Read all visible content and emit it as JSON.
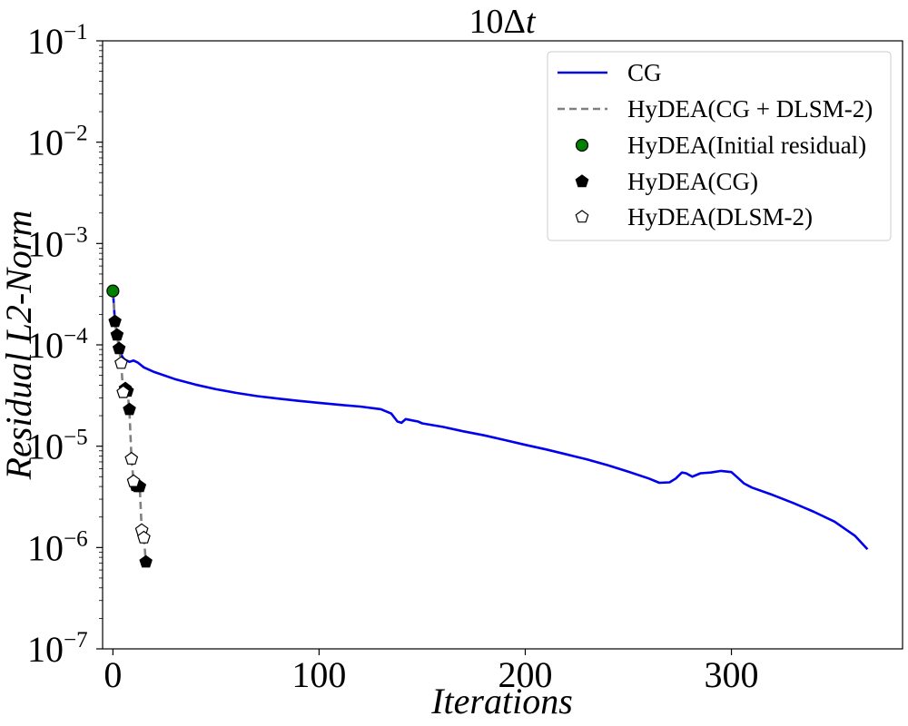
{
  "chart_data": {
    "type": "line",
    "title_base": "10Δ",
    "title_var": "t",
    "xlabel": "Iterations",
    "ylabel": "Residual L2-Norm",
    "xlim": [
      -5,
      383
    ],
    "ylim_log10": [
      -7,
      -1
    ],
    "yscale": "log",
    "x_ticks": [
      0,
      100,
      200,
      300
    ],
    "y_ticks": [
      {
        "exp": -1,
        "base": "10",
        "power": "−1"
      },
      {
        "exp": -2,
        "base": "10",
        "power": "−2"
      },
      {
        "exp": -3,
        "base": "10",
        "power": "−3"
      },
      {
        "exp": -4,
        "base": "10",
        "power": "−4"
      },
      {
        "exp": -5,
        "base": "10",
        "power": "−5"
      },
      {
        "exp": -6,
        "base": "10",
        "power": "−6"
      },
      {
        "exp": -7,
        "base": "10",
        "power": "−7"
      }
    ],
    "legend_position": "top-right",
    "series": [
      {
        "name": "CG",
        "style": "solid-line",
        "color": "#0000ee",
        "points": [
          [
            0,
            0.00034
          ],
          [
            1,
            0.00017
          ],
          [
            2,
            0.000125
          ],
          [
            3,
            9.5e-05
          ],
          [
            4,
            8e-05
          ],
          [
            5,
            7.4e-05
          ],
          [
            6,
            7.1e-05
          ],
          [
            8,
            6.8e-05
          ],
          [
            10,
            7e-05
          ],
          [
            12,
            6.7e-05
          ],
          [
            15,
            6e-05
          ],
          [
            20,
            5.4e-05
          ],
          [
            30,
            4.6e-05
          ],
          [
            40,
            4.05e-05
          ],
          [
            50,
            3.65e-05
          ],
          [
            60,
            3.35e-05
          ],
          [
            70,
            3.12e-05
          ],
          [
            80,
            2.95e-05
          ],
          [
            90,
            2.8e-05
          ],
          [
            100,
            2.68e-05
          ],
          [
            110,
            2.56e-05
          ],
          [
            120,
            2.46e-05
          ],
          [
            130,
            2.32e-05
          ],
          [
            135,
            2.1e-05
          ],
          [
            138,
            1.75e-05
          ],
          [
            140,
            1.7e-05
          ],
          [
            142,
            1.85e-05
          ],
          [
            145,
            1.8e-05
          ],
          [
            148,
            1.75e-05
          ],
          [
            150,
            1.68e-05
          ],
          [
            160,
            1.55e-05
          ],
          [
            170,
            1.4e-05
          ],
          [
            180,
            1.28e-05
          ],
          [
            190,
            1.15e-05
          ],
          [
            200,
            1.03e-05
          ],
          [
            210,
            9.3e-06
          ],
          [
            220,
            8.3e-06
          ],
          [
            230,
            7.4e-06
          ],
          [
            240,
            6.5e-06
          ],
          [
            250,
            5.6e-06
          ],
          [
            260,
            4.8e-06
          ],
          [
            265,
            4.35e-06
          ],
          [
            270,
            4.4e-06
          ],
          [
            273,
            4.8e-06
          ],
          [
            276,
            5.5e-06
          ],
          [
            278,
            5.4e-06
          ],
          [
            281,
            5e-06
          ],
          [
            285,
            5.4e-06
          ],
          [
            290,
            5.5e-06
          ],
          [
            295,
            5.7e-06
          ],
          [
            300,
            5.55e-06
          ],
          [
            303,
            4.9e-06
          ],
          [
            306,
            4.3e-06
          ],
          [
            310,
            3.9e-06
          ],
          [
            320,
            3.3e-06
          ],
          [
            330,
            2.75e-06
          ],
          [
            340,
            2.25e-06
          ],
          [
            350,
            1.8e-06
          ],
          [
            360,
            1.3e-06
          ],
          [
            366,
            9.6e-07
          ]
        ]
      },
      {
        "name": "HyDEA(CG + DLSM-2)",
        "style": "dashed-line",
        "color": "#808080",
        "points": [
          [
            0,
            0.00034
          ],
          [
            1,
            0.00017
          ],
          [
            2,
            0.000125
          ],
          [
            3,
            9.2e-05
          ],
          [
            4,
            6.6e-05
          ],
          [
            5,
            3.4e-05
          ],
          [
            6,
            3.7e-05
          ],
          [
            7,
            3.5e-05
          ],
          [
            8,
            2.3e-05
          ],
          [
            9,
            7.5e-06
          ],
          [
            10,
            4.5e-06
          ],
          [
            11,
            4.1e-06
          ],
          [
            12,
            4e-06
          ],
          [
            13,
            4e-06
          ],
          [
            14,
            1.48e-06
          ],
          [
            15,
            1.25e-06
          ],
          [
            16,
            7.2e-07
          ]
        ]
      },
      {
        "name": "HyDEA(Initial residual)",
        "style": "circle-marker",
        "color": "#008000",
        "points": [
          [
            0,
            0.00034
          ]
        ]
      },
      {
        "name": "HyDEA(CG)",
        "style": "filled-pentagon-marker",
        "color": "#000000",
        "points": [
          [
            1,
            0.00017
          ],
          [
            2,
            0.000125
          ],
          [
            3,
            9.2e-05
          ],
          [
            6,
            3.7e-05
          ],
          [
            7,
            3.5e-05
          ],
          [
            8,
            2.3e-05
          ],
          [
            11,
            4.1e-06
          ],
          [
            12,
            4e-06
          ],
          [
            13,
            4e-06
          ],
          [
            16,
            7.2e-07
          ]
        ]
      },
      {
        "name": "HyDEA(DLSM-2)",
        "style": "open-pentagon-marker",
        "color": "#ffffff",
        "points": [
          [
            4,
            6.6e-05
          ],
          [
            5,
            3.4e-05
          ],
          [
            9,
            7.5e-06
          ],
          [
            10,
            4.5e-06
          ],
          [
            14,
            1.48e-06
          ],
          [
            15,
            1.25e-06
          ]
        ]
      }
    ]
  }
}
